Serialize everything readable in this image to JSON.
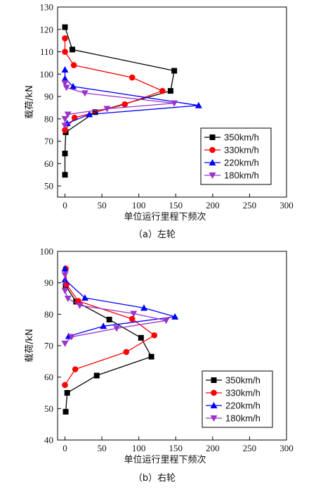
{
  "chart_data": [
    {
      "type": "line",
      "caption": "（a）左轮",
      "xlabel": "单位运行里程下频次",
      "ylabel": "载荷/kN",
      "xlim": [
        -10,
        300
      ],
      "ylim": [
        45,
        130
      ],
      "xticks": [
        0,
        50,
        100,
        150,
        200,
        250,
        300
      ],
      "yticks": [
        50,
        60,
        70,
        80,
        90,
        100,
        110,
        120,
        130
      ],
      "legend_position": "lower-right",
      "series": [
        {
          "name": "350km/h",
          "color": "#000000",
          "marker": "square",
          "points": [
            [
              0,
              121
            ],
            [
              10,
              111
            ],
            [
              148,
              101.5
            ],
            [
              143,
              92.5
            ],
            [
              41,
              83
            ],
            [
              1,
              74
            ],
            [
              0,
              64.5
            ],
            [
              0,
              55
            ]
          ]
        },
        {
          "name": "330km/h",
          "color": "#ff0000",
          "marker": "circle",
          "points": [
            [
              0,
              116
            ],
            [
              0,
              110
            ],
            [
              12,
              104
            ],
            [
              91,
              98.5
            ],
            [
              132,
              92.5
            ],
            [
              81,
              86.5
            ],
            [
              13,
              80.5
            ],
            [
              0,
              75
            ]
          ]
        },
        {
          "name": "220km/h",
          "color": "#0000ff",
          "marker": "triangle-up",
          "points": [
            [
              0,
              102
            ],
            [
              0,
              98
            ],
            [
              11,
              94.5
            ],
            [
              181,
              86
            ],
            [
              33,
              82
            ],
            [
              3,
              78
            ]
          ]
        },
        {
          "name": "180km/h",
          "color": "#9933cc",
          "marker": "triangle-down",
          "points": [
            [
              0,
              96
            ],
            [
              2,
              94
            ],
            [
              27,
              91.5
            ],
            [
              148,
              87
            ],
            [
              57,
              84.5
            ],
            [
              4,
              82
            ],
            [
              0,
              80
            ],
            [
              0,
              77
            ]
          ]
        }
      ]
    },
    {
      "type": "line",
      "caption": "（b）右轮",
      "xlabel": "单位运行里程下频次",
      "ylabel": "载荷/kN",
      "xlim": [
        -10,
        300
      ],
      "ylim": [
        40,
        100
      ],
      "xticks": [
        0,
        50,
        100,
        150,
        200,
        250,
        300
      ],
      "yticks": [
        40,
        50,
        60,
        70,
        80,
        90,
        100
      ],
      "legend_position": "lower-right",
      "series": [
        {
          "name": "350km/h",
          "color": "#000000",
          "marker": "square",
          "points": [
            [
              1,
              89
            ],
            [
              15,
              84
            ],
            [
              60,
              78.3
            ],
            [
              103,
              72.5
            ],
            [
              117,
              66.5
            ],
            [
              43,
              60.5
            ],
            [
              3,
              55
            ],
            [
              1,
              49
            ]
          ]
        },
        {
          "name": "330km/h",
          "color": "#ff0000",
          "marker": "circle",
          "points": [
            [
              1,
              94.5
            ],
            [
              2,
              89.5
            ],
            [
              18,
              84.2
            ],
            [
              91,
              78.5
            ],
            [
              121,
              73.3
            ],
            [
              83,
              68
            ],
            [
              14,
              62.5
            ],
            [
              0,
              57.5
            ]
          ]
        },
        {
          "name": "220km/h",
          "color": "#0000ff",
          "marker": "triangle-up",
          "points": [
            [
              0,
              94.5
            ],
            [
              0,
              91
            ],
            [
              27,
              85.2
            ],
            [
              107,
              82
            ],
            [
              149,
              79.2
            ],
            [
              52,
              76.2
            ],
            [
              5,
              73
            ]
          ]
        },
        {
          "name": "180km/h",
          "color": "#9933cc",
          "marker": "triangle-down",
          "points": [
            [
              0,
              92.5
            ],
            [
              0,
              87.5
            ],
            [
              4,
              85
            ],
            [
              20,
              82.8
            ],
            [
              93,
              80.2
            ],
            [
              137,
              78
            ],
            [
              70,
              75.5
            ],
            [
              9,
              72.8
            ],
            [
              0,
              70.7
            ]
          ]
        }
      ]
    }
  ]
}
